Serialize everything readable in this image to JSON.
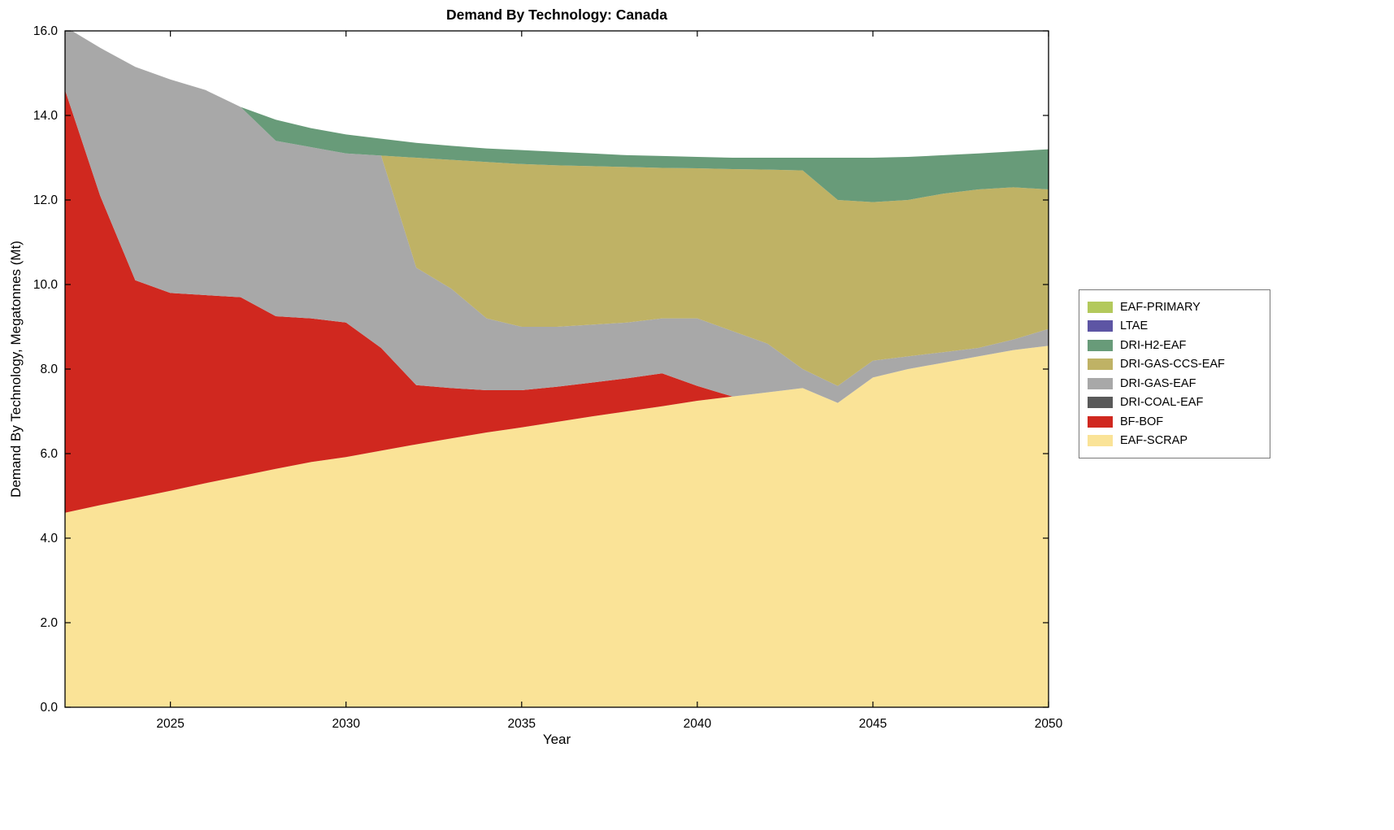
{
  "title": "Demand By Technology: Canada",
  "chart_data": {
    "type": "area",
    "stacked": true,
    "title": "Demand By Technology: Canada",
    "xlabel": "Year",
    "ylabel": "Demand By Technology, Megatonnes (Mt)",
    "xlim": [
      2022,
      2050
    ],
    "ylim": [
      0,
      16
    ],
    "x_ticks": [
      2025,
      2030,
      2035,
      2040,
      2045,
      2050
    ],
    "y_ticks": [
      0,
      2,
      4,
      6,
      8,
      10,
      12,
      14,
      16
    ],
    "grid": false,
    "legend_position": "right-outside",
    "legend_order_top_to_bottom": [
      "EAF-PRIMARY",
      "LTAE",
      "DRI-H2-EAF",
      "DRI-GAS-CCS-EAF",
      "DRI-GAS-EAF",
      "DRI-COAL-EAF",
      "BF-BOF",
      "EAF-SCRAP"
    ],
    "x": [
      2022,
      2023,
      2024,
      2025,
      2026,
      2027,
      2028,
      2029,
      2030,
      2031,
      2032,
      2033,
      2034,
      2035,
      2036,
      2037,
      2038,
      2039,
      2040,
      2041,
      2042,
      2043,
      2044,
      2045,
      2046,
      2047,
      2048,
      2049,
      2050
    ],
    "series": [
      {
        "name": "EAF-SCRAP",
        "color": "#FAE397",
        "values": [
          4.6,
          4.78,
          4.95,
          5.12,
          5.3,
          5.47,
          5.64,
          5.8,
          5.92,
          6.07,
          6.22,
          6.36,
          6.5,
          6.62,
          6.75,
          6.88,
          7.0,
          7.12,
          7.25,
          7.35,
          7.45,
          7.55,
          7.2,
          7.8,
          8.0,
          8.15,
          8.3,
          8.45,
          8.55
        ]
      },
      {
        "name": "BF-BOF",
        "color": "#D0281F",
        "values": [
          10.0,
          7.32,
          5.15,
          4.68,
          4.45,
          4.23,
          3.61,
          3.4,
          3.18,
          2.43,
          1.4,
          1.19,
          1.0,
          0.88,
          0.83,
          0.8,
          0.78,
          0.78,
          0.35,
          0,
          0,
          0,
          0,
          0,
          0,
          0,
          0,
          0,
          0
        ]
      },
      {
        "name": "DRI-COAL-EAF",
        "color": "#595959",
        "values": [
          0,
          0,
          0,
          0,
          0,
          0,
          0,
          0,
          0,
          0,
          0,
          0,
          0,
          0,
          0,
          0,
          0,
          0,
          0,
          0,
          0,
          0,
          0,
          0,
          0,
          0,
          0,
          0,
          0
        ]
      },
      {
        "name": "DRI-GAS-EAF",
        "color": "#A8A8A8",
        "values": [
          1.5,
          3.5,
          5.05,
          5.05,
          4.85,
          4.5,
          4.15,
          4.05,
          4.0,
          4.55,
          2.78,
          2.35,
          1.7,
          1.5,
          1.42,
          1.37,
          1.32,
          1.3,
          1.6,
          1.55,
          1.15,
          0.45,
          0.4,
          0.4,
          0.3,
          0.25,
          0.2,
          0.25,
          0.4
        ]
      },
      {
        "name": "DRI-GAS-CCS-EAF",
        "color": "#BFB265",
        "values": [
          0,
          0,
          0,
          0,
          0,
          0,
          0,
          0,
          0,
          0,
          2.6,
          3.05,
          3.7,
          3.85,
          3.82,
          3.75,
          3.68,
          3.56,
          3.55,
          3.83,
          4.12,
          4.7,
          4.4,
          3.75,
          3.7,
          3.75,
          3.75,
          3.6,
          3.3
        ]
      },
      {
        "name": "DRI-H2-EAF",
        "color": "#689B79",
        "values": [
          0,
          0,
          0,
          0,
          0,
          0,
          0.5,
          0.45,
          0.45,
          0.4,
          0.35,
          0.33,
          0.32,
          0.33,
          0.32,
          0.3,
          0.28,
          0.28,
          0.27,
          0.27,
          0.28,
          0.3,
          1.0,
          1.05,
          1.02,
          0.91,
          0.85,
          0.85,
          0.95
        ]
      },
      {
        "name": "LTAE",
        "color": "#5D55A4",
        "values": [
          0,
          0,
          0,
          0,
          0,
          0,
          0,
          0,
          0,
          0,
          0,
          0,
          0,
          0,
          0,
          0,
          0,
          0,
          0,
          0,
          0,
          0,
          0,
          0,
          0,
          0,
          0,
          0,
          0
        ]
      },
      {
        "name": "EAF-PRIMARY",
        "color": "#B3C95C",
        "values": [
          0,
          0,
          0,
          0,
          0,
          0,
          0,
          0,
          0,
          0,
          0,
          0,
          0,
          0,
          0,
          0,
          0,
          0,
          0,
          0,
          0,
          0,
          0,
          0,
          0,
          0,
          0,
          0,
          0
        ]
      }
    ]
  }
}
